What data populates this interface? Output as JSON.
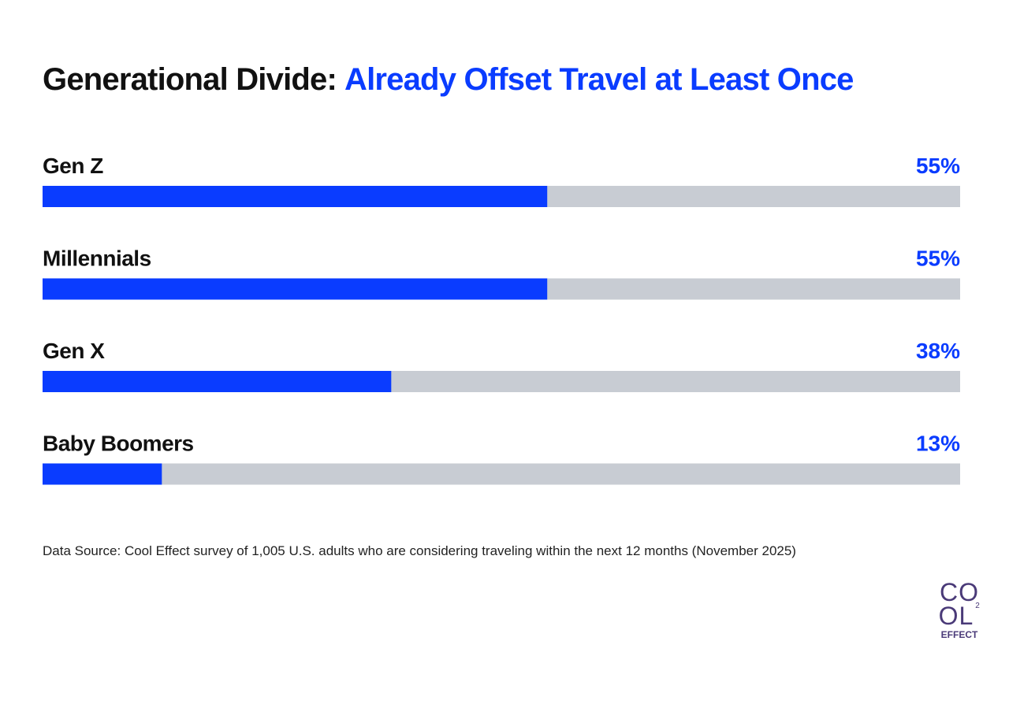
{
  "chart_data": {
    "type": "progress-bar",
    "title": {
      "lead": "Generational Divide:",
      "highlight": "Already Offset Travel at Least Once"
    },
    "categories": [
      "Gen Z",
      "Millennials",
      "Gen X",
      "Baby Boomers"
    ],
    "values": [
      55,
      55,
      38,
      13
    ],
    "value_labels": [
      "55%",
      "55%",
      "38%",
      "13%"
    ],
    "xlim": [
      0,
      100
    ],
    "color": "#0a3cff",
    "track_color": "#c8ccd3",
    "source": "Data Source: Cool Effect survey of 1,005 U.S. adults who are considering traveling within the next 12 months (November 2025)"
  },
  "logo": {
    "line1": "CO",
    "line2": "OL",
    "sup": "2",
    "line3": "EFFECT"
  }
}
